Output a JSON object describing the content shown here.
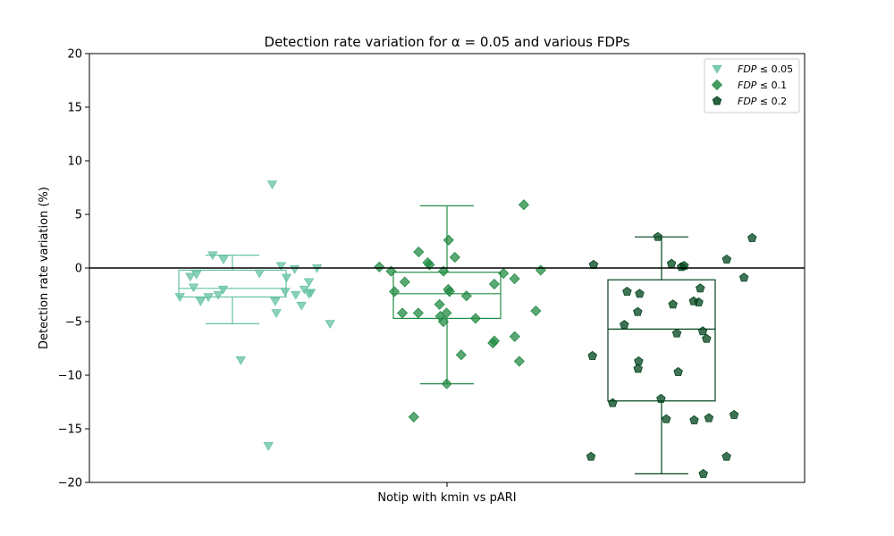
{
  "chart_data": {
    "type": "box",
    "title": "Detection rate variation for α = 0.05 and various FDPs",
    "xlabel": "Notip with kmin vs pARI",
    "ylabel": "Detection rate variation (%)",
    "ylim": [
      -20,
      20
    ],
    "yticks": [
      -20,
      -15,
      -10,
      -5,
      0,
      5,
      10,
      15,
      20
    ],
    "ytick_labels": [
      "−20",
      "−15",
      "−10",
      "−5",
      "0",
      "5",
      "10",
      "15",
      "20"
    ],
    "reference_line": 0,
    "legend_position": "top-right",
    "series": [
      {
        "name": "FDP ≤ 0.05",
        "legend_base": "FDP",
        "legend_rest": " ≤ 0.05",
        "marker": "triangle-down",
        "color": "#66c2a4",
        "box": {
          "whisker_low": -5.2,
          "q1": -2.7,
          "median": -1.9,
          "q3": -0.2,
          "whisker_high": 1.2
        },
        "points": [
          7.8,
          1.2,
          -16.6,
          -5.2,
          -4.2,
          -3.1,
          -0.8,
          -2.3,
          0.2,
          -3.5,
          -0.9,
          -2.5,
          -2.5,
          -1.8,
          -0.5,
          -3.1,
          -0.6,
          -0.1,
          -1.3,
          -2.0,
          -2.7,
          -8.6,
          -2.2,
          -2.0,
          -2.7,
          0.8,
          0.0,
          -2.4
        ]
      },
      {
        "name": "FDP ≤ 0.1",
        "legend_base": "FDP",
        "legend_rest": " ≤ 0.1",
        "marker": "diamond",
        "color": "#238b45",
        "box": {
          "whisker_low": -10.8,
          "q1": -4.7,
          "median": -2.4,
          "q3": -0.4,
          "whisker_high": 5.8
        },
        "points": [
          -10.8,
          -2.0,
          -6.4,
          -1.3,
          -4.2,
          0.3,
          -3.4,
          -8.1,
          -0.2,
          1.0,
          -0.5,
          -13.9,
          -2.2,
          5.9,
          -1.0,
          0.5,
          -2.6,
          -8.7,
          -6.8,
          -2.2,
          -4.7,
          -0.3,
          -7.0,
          -5.0,
          -1.5,
          1.5,
          -4.5,
          -0.3,
          -4.2,
          -4.0,
          2.6,
          0.1,
          -4.2
        ]
      },
      {
        "name": "FDP ≤ 0.2",
        "legend_base": "FDP",
        "legend_rest": " ≤ 0.2",
        "marker": "pentagon",
        "color": "#00441b",
        "box": {
          "whisker_low": -19.2,
          "q1": -12.4,
          "median": -5.7,
          "q3": -1.1,
          "whisker_high": 2.9
        },
        "points": [
          -12.6,
          -19.2,
          -17.6,
          -8.7,
          -4.1,
          -12.2,
          -2.2,
          -17.6,
          0.4,
          0.1,
          -13.7,
          -14.2,
          -14.0,
          0.3,
          0.2,
          -14.1,
          -6.1,
          -5.9,
          -2.4,
          -3.4,
          2.8,
          -5.3,
          -9.7,
          -0.9,
          -3.1,
          -8.2,
          -3.2,
          -1.9,
          2.9,
          0.8,
          -6.6,
          -9.4
        ]
      }
    ]
  }
}
